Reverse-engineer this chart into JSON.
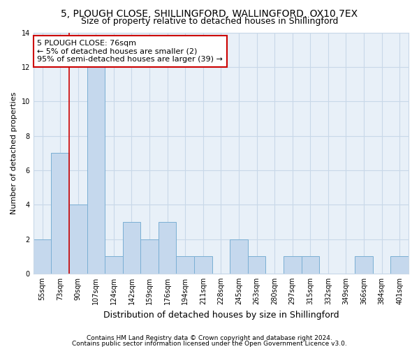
{
  "title1": "5, PLOUGH CLOSE, SHILLINGFORD, WALLINGFORD, OX10 7EX",
  "title2": "Size of property relative to detached houses in Shillingford",
  "xlabel": "Distribution of detached houses by size in Shillingford",
  "ylabel": "Number of detached properties",
  "categories": [
    "55sqm",
    "73sqm",
    "90sqm",
    "107sqm",
    "124sqm",
    "142sqm",
    "159sqm",
    "176sqm",
    "194sqm",
    "211sqm",
    "228sqm",
    "245sqm",
    "263sqm",
    "280sqm",
    "297sqm",
    "315sqm",
    "332sqm",
    "349sqm",
    "366sqm",
    "384sqm",
    "401sqm"
  ],
  "values": [
    2,
    7,
    4,
    12,
    1,
    3,
    2,
    3,
    1,
    1,
    0,
    2,
    1,
    0,
    1,
    1,
    0,
    0,
    1,
    0,
    1
  ],
  "bar_color": "#c5d8ed",
  "bar_edge_color": "#7aafd4",
  "subject_line_color": "#cc0000",
  "annotation_text": "5 PLOUGH CLOSE: 76sqm\n← 5% of detached houses are smaller (2)\n95% of semi-detached houses are larger (39) →",
  "annotation_box_color": "#cc0000",
  "ylim": [
    0,
    14
  ],
  "yticks": [
    0,
    2,
    4,
    6,
    8,
    10,
    12,
    14
  ],
  "grid_color": "#c8d8e8",
  "background_color": "#e8f0f8",
  "footer1": "Contains HM Land Registry data © Crown copyright and database right 2024.",
  "footer2": "Contains public sector information licensed under the Open Government Licence v3.0.",
  "title1_fontsize": 10,
  "title2_fontsize": 9,
  "xlabel_fontsize": 9,
  "ylabel_fontsize": 8,
  "tick_fontsize": 7,
  "annotation_fontsize": 8,
  "footer_fontsize": 6.5
}
